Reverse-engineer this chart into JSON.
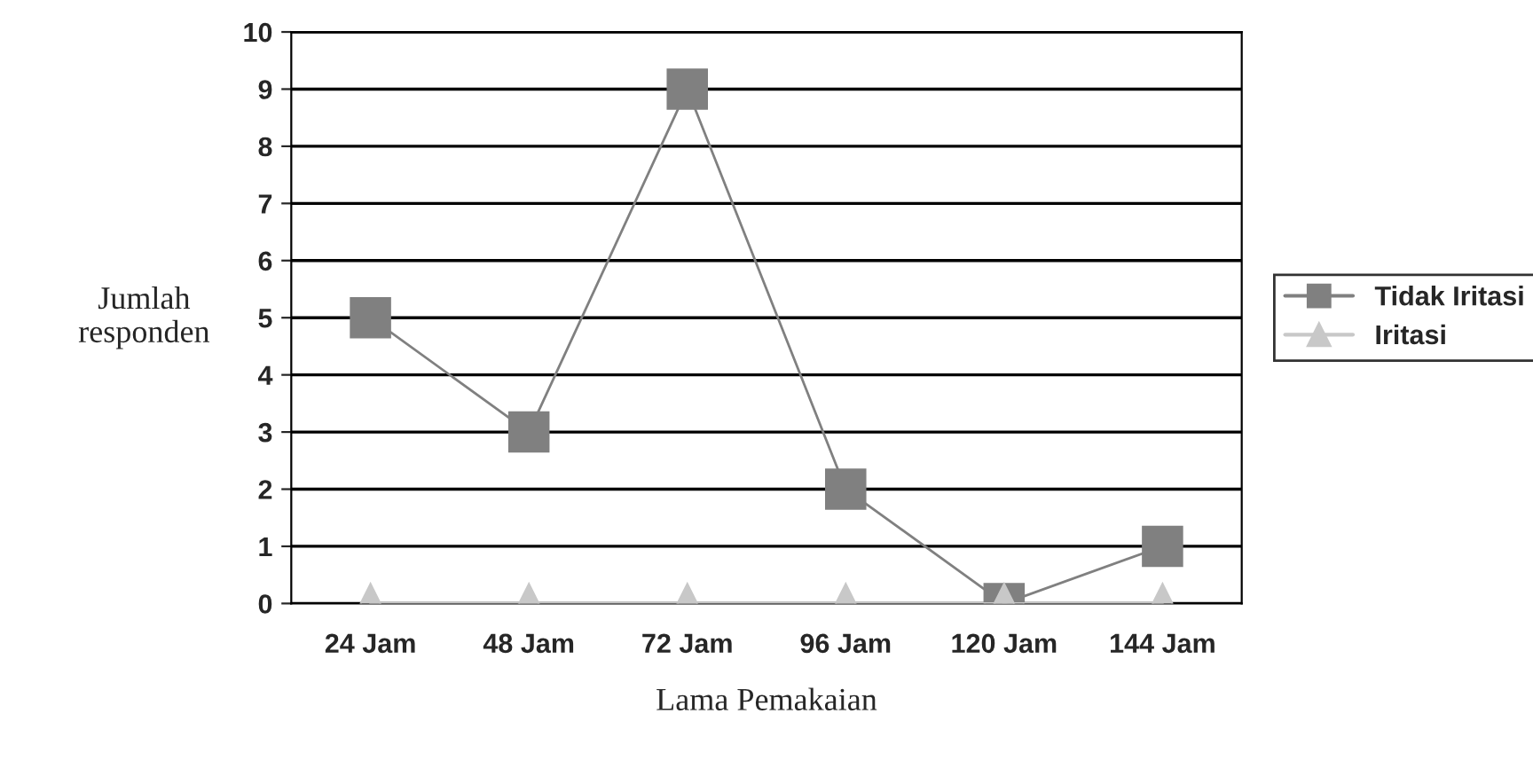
{
  "chart_data": {
    "type": "line",
    "xlabel": "Lama Pemakaian",
    "ylabel": "Jumlah\nresponden",
    "categories": [
      "24 Jam",
      "48 Jam",
      "72 Jam",
      "96 Jam",
      "120 Jam",
      "144 Jam"
    ],
    "series": [
      {
        "name": "Tidak Iritasi",
        "color": "#808080",
        "marker": "square",
        "values": [
          5,
          3,
          9,
          2,
          0,
          1
        ]
      },
      {
        "name": "Iritasi",
        "color": "#c8c8c8",
        "marker": "triangle",
        "values": [
          0,
          0,
          0,
          0,
          0,
          0
        ]
      }
    ],
    "ylim": [
      0,
      10
    ],
    "yticks": [
      0,
      1,
      2,
      3,
      4,
      5,
      6,
      7,
      8,
      9,
      10
    ],
    "grid": "y",
    "legend": "right",
    "line_style": "solid"
  }
}
